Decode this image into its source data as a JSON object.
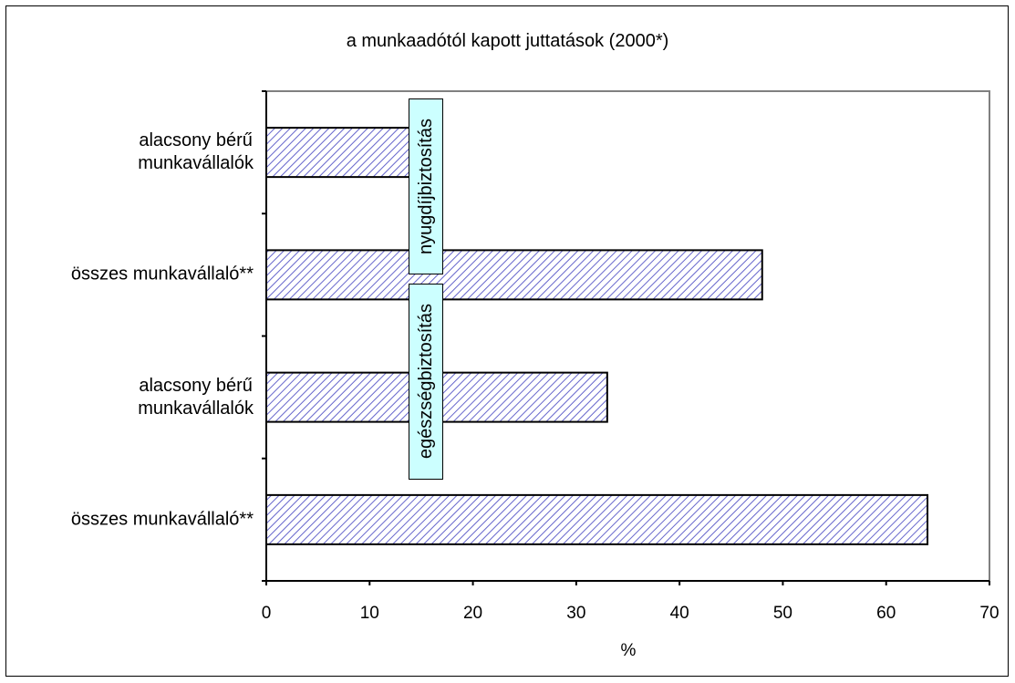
{
  "chart_data": {
    "type": "bar",
    "orientation": "horizontal",
    "title": "a munkaadótól kapott juttatások (2000*)",
    "xlabel": "%",
    "ylabel": "",
    "xlim": [
      0,
      70
    ],
    "xticks": [
      0,
      10,
      20,
      30,
      40,
      50,
      60,
      70
    ],
    "grid": false,
    "categories": [
      [
        "alacsony bérű",
        "munkavállalók"
      ],
      [
        "összes munkavállaló**"
      ],
      [
        "alacsony bérű",
        "munkavállalók"
      ],
      [
        "összes munkavállaló**"
      ]
    ],
    "values": [
      14,
      48,
      33,
      64
    ],
    "groups": [
      {
        "label": "nyugdíjbiztosítás",
        "category_indices": [
          0,
          1
        ]
      },
      {
        "label": "egészségbiztosítás",
        "category_indices": [
          2,
          3
        ]
      }
    ],
    "colors": {
      "bar_fill": "#ffffff",
      "bar_hatch": "#6666cc",
      "group_label_bg": "#ccffff",
      "plot_border": "#808080"
    }
  }
}
